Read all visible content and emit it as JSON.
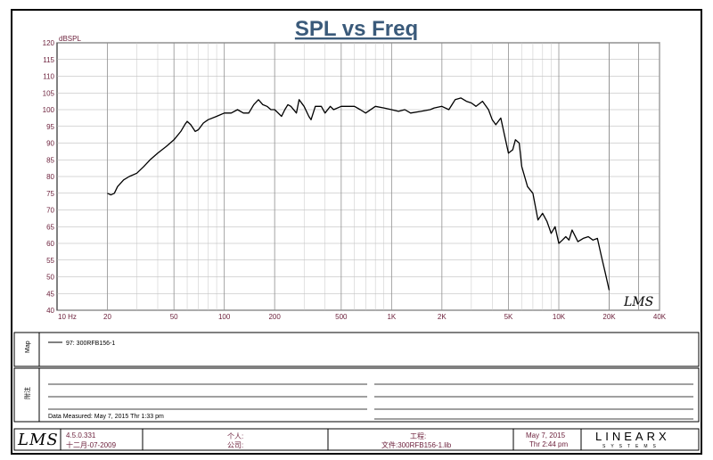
{
  "chart_data": {
    "type": "line",
    "title": "SPL vs Freq",
    "ylabel": "dBSPL",
    "xscale": "log",
    "xlim": [
      10,
      40000
    ],
    "ylim": [
      40,
      120
    ],
    "yticks": [
      40,
      45,
      50,
      55,
      60,
      65,
      70,
      75,
      80,
      85,
      90,
      95,
      100,
      105,
      110,
      115,
      120
    ],
    "xticks": [
      {
        "v": 10,
        "label": "10  Hz"
      },
      {
        "v": 20,
        "label": "20"
      },
      {
        "v": 50,
        "label": "50"
      },
      {
        "v": 100,
        "label": "100"
      },
      {
        "v": 200,
        "label": "200"
      },
      {
        "v": 500,
        "label": "500"
      },
      {
        "v": 1000,
        "label": "1K"
      },
      {
        "v": 2000,
        "label": "2K"
      },
      {
        "v": 5000,
        "label": "5K"
      },
      {
        "v": 10000,
        "label": "10K"
      },
      {
        "v": 20000,
        "label": "20K"
      },
      {
        "v": 40000,
        "label": "40K"
      }
    ],
    "grid": true,
    "series": [
      {
        "name": "97: 300RFB156-1",
        "color": "#000000",
        "x": [
          20,
          21,
          22,
          23,
          25,
          27,
          30,
          33,
          36,
          40,
          45,
          50,
          55,
          58,
          60,
          63,
          67,
          70,
          75,
          80,
          90,
          100,
          110,
          120,
          130,
          140,
          150,
          160,
          170,
          180,
          190,
          200,
          220,
          230,
          240,
          250,
          270,
          280,
          300,
          320,
          330,
          350,
          380,
          400,
          430,
          450,
          500,
          550,
          600,
          650,
          700,
          800,
          900,
          1000,
          1100,
          1200,
          1300,
          1500,
          1700,
          1800,
          2000,
          2200,
          2400,
          2600,
          2800,
          3000,
          3200,
          3500,
          3800,
          4000,
          4200,
          4500,
          4800,
          5000,
          5300,
          5500,
          5800,
          6000,
          6500,
          7000,
          7500,
          8000,
          8500,
          9000,
          9500,
          10000,
          10500,
          11000,
          11500,
          12000,
          13000,
          14000,
          15000,
          16000,
          17000,
          18000,
          19000,
          20000
        ],
        "y": [
          75,
          74.5,
          75,
          77,
          79,
          80,
          81,
          83,
          85,
          87,
          89,
          91,
          93.5,
          95.5,
          96.5,
          95.5,
          93.5,
          94,
          96,
          97,
          98,
          99,
          99,
          100,
          99,
          99,
          101.5,
          103,
          101.5,
          101,
          100,
          100,
          98,
          100,
          101.5,
          101,
          99,
          103,
          101,
          98,
          97,
          101,
          101,
          99,
          101,
          100,
          101,
          101,
          101,
          100,
          99,
          101,
          100.5,
          100,
          99.5,
          100,
          99,
          99.5,
          100,
          100.5,
          101,
          100,
          103,
          103.5,
          102.5,
          102,
          101,
          102.5,
          100,
          97,
          95.5,
          97.5,
          91,
          87,
          88,
          91,
          90,
          83,
          77,
          75,
          67,
          69,
          66.5,
          63,
          65,
          60,
          61,
          62,
          61,
          64,
          60.5,
          61.5,
          62,
          61,
          61.5,
          56,
          51,
          46
        ]
      }
    ]
  },
  "legend_panel": {
    "label": "Map",
    "entry": "97: 300RFB156-1"
  },
  "notes_panel": {
    "label": "附注",
    "measured": "Data Measured: May 7, 2015  Thr  1:33 pm"
  },
  "footer": {
    "logo": "LMS",
    "version": "4.5.0.331",
    "date_cn": "十二月-07-2009",
    "personal_label": "个人:",
    "company_label": "公司:",
    "project_label": "工程:",
    "file_label": "文件:300RFB156-1.lib",
    "date": "May 7, 2015",
    "time": "Thr  2:44 pm",
    "brand": "LINEARX",
    "brand_sub": "SYSTEMS"
  },
  "watermark": "LMS"
}
